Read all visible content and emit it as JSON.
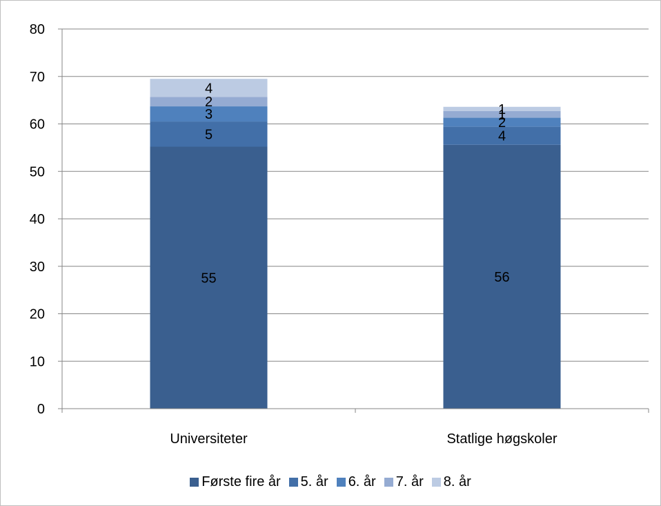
{
  "chart_data": {
    "type": "bar",
    "stacked": true,
    "categories": [
      "Universiteter",
      "Statlige høgskoler"
    ],
    "series": [
      {
        "name": "Første fire år",
        "values": [
          55.2,
          55.6
        ],
        "labels": [
          "55",
          "56"
        ],
        "color": "#3a5f8f"
      },
      {
        "name": "5. år",
        "values": [
          5.3,
          3.8
        ],
        "labels": [
          "5",
          "4"
        ],
        "color": "#426fa8"
      },
      {
        "name": "6. år",
        "values": [
          3.2,
          1.9
        ],
        "labels": [
          "3",
          "2"
        ],
        "color": "#4f81bd"
      },
      {
        "name": "7. år",
        "values": [
          2.0,
          1.4
        ],
        "labels": [
          "2",
          "1"
        ],
        "color": "#95abd2"
      },
      {
        "name": "8. år",
        "values": [
          3.8,
          0.9
        ],
        "labels": [
          "4",
          "1"
        ],
        "color": "#bccbe3"
      }
    ],
    "yticks": [
      "0",
      "10",
      "20",
      "30",
      "40",
      "50",
      "60",
      "70",
      "80"
    ],
    "ylim": [
      0,
      80
    ],
    "grid": true,
    "legend_position": "bottom"
  }
}
